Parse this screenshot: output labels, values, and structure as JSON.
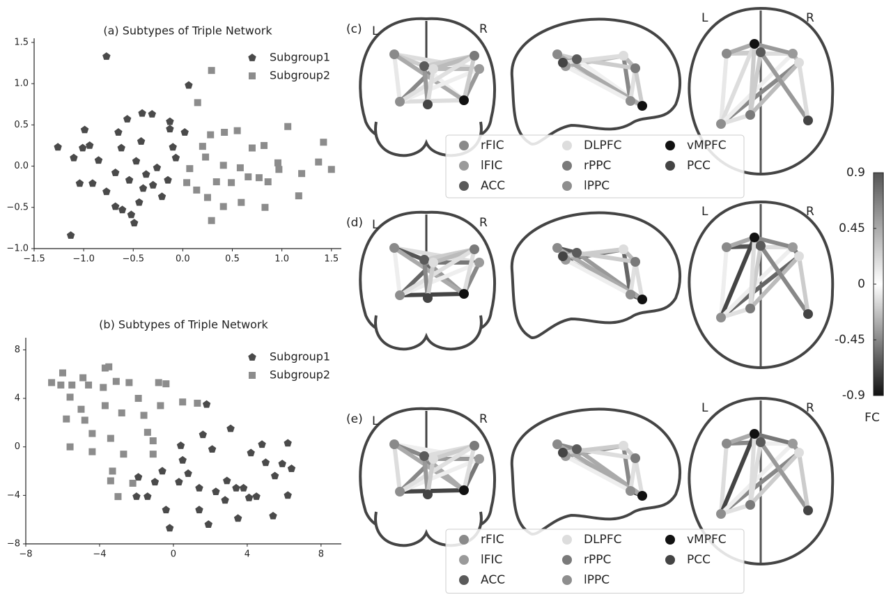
{
  "chart_data": [
    {
      "type": "scatter",
      "title": "(a) Subtypes of Triple Network",
      "legend": "upper right",
      "xlim": [
        -1.5,
        1.6
      ],
      "ylim": [
        -1.0,
        1.55
      ],
      "xticks": [
        {
          "value": -1.5,
          "label": "−1.5"
        },
        {
          "value": -1.0,
          "label": "−1.0"
        },
        {
          "value": -0.5,
          "label": "−0.5"
        },
        {
          "value": 0,
          "label": "0.0"
        },
        0.5,
        {
          "value": 1.0,
          "label": "1.0"
        },
        1.5
      ],
      "yticks": [
        {
          "value": -1.0,
          "label": "−1.0"
        },
        {
          "value": -0.5,
          "label": "−0.5"
        },
        {
          "value": 0,
          "label": "0.0"
        },
        0.5,
        {
          "value": 1.0,
          "label": "1.0"
        },
        1.5
      ],
      "series": [
        {
          "name": "Subgroup1",
          "color": "#4a4a4a",
          "marker": "pentagon",
          "x": [
            -0.77,
            -1.26,
            -0.99,
            -1.13,
            -1.01,
            -0.94,
            -1.1,
            -1.04,
            -0.91,
            -0.85,
            -0.77,
            -0.68,
            -0.61,
            -0.52,
            -0.49,
            -0.42,
            -0.31,
            -0.56,
            -0.41,
            -0.62,
            -0.47,
            -0.37,
            -0.26,
            -0.13,
            -0.13,
            -0.21,
            -0.07,
            0.06,
            0.02,
            -0.68,
            -0.54,
            -0.3,
            -0.15,
            -0.4,
            -0.1,
            -0.44,
            -0.65
          ],
          "values": [
            1.33,
            0.23,
            0.44,
            -0.84,
            0.22,
            0.25,
            0.1,
            -0.21,
            -0.21,
            0.07,
            -0.31,
            -0.49,
            -0.53,
            -0.59,
            -0.69,
            0.3,
            0.63,
            0.57,
            0.64,
            0.22,
            0.06,
            -0.1,
            -0.02,
            0.54,
            0.45,
            -0.37,
            0.1,
            0.98,
            0.41,
            -0.08,
            -0.17,
            -0.23,
            -0.17,
            -0.27,
            0.23,
            -0.44,
            0.41
          ]
        },
        {
          "name": "Subgroup2",
          "color": "#8c8c8c",
          "marker": "square",
          "x": [
            0.29,
            0.15,
            1.06,
            1.42,
            1.5,
            1.37,
            1.2,
            1.17,
            0.96,
            0.97,
            0.86,
            0.82,
            0.7,
            0.55,
            0.42,
            0.28,
            0.2,
            0.23,
            0.07,
            0.04,
            0.14,
            0.25,
            0.29,
            0.41,
            0.59,
            0.66,
            0.77,
            0.83,
            0.49,
            0.41,
            0.58,
            0.34
          ],
          "values": [
            1.16,
            0.77,
            0.48,
            0.29,
            -0.04,
            0.05,
            -0.09,
            -0.36,
            0.04,
            -0.04,
            -0.19,
            0.25,
            0.22,
            0.43,
            0.41,
            0.38,
            0.24,
            0.11,
            -0.03,
            -0.2,
            -0.29,
            -0.38,
            -0.66,
            -0.49,
            -0.44,
            -0.13,
            -0.14,
            -0.5,
            -0.2,
            0.01,
            -0.02,
            -0.19
          ]
        }
      ]
    },
    {
      "type": "scatter",
      "title": "(b) Subtypes of Triple Network",
      "legend": "upper right",
      "xlim": [
        -8,
        9.1
      ],
      "ylim": [
        -8,
        9
      ],
      "xticks": [
        {
          "value": -8,
          "label": "−8"
        },
        {
          "value": -4,
          "label": "−4"
        },
        0,
        4,
        8
      ],
      "yticks": [
        {
          "value": -8,
          "label": "−8"
        },
        {
          "value": -4,
          "label": "−4"
        },
        0,
        4,
        8
      ],
      "series": [
        {
          "name": "Subgroup1",
          "color": "#4a4a4a",
          "marker": "pentagon",
          "x": [
            1.8,
            3.1,
            4.2,
            4.8,
            6.2,
            6.4,
            6.2,
            5.4,
            3.5,
            1.9,
            -0.2,
            -0.4,
            -1.9,
            -1.4,
            -2.0,
            -0.6,
            0.4,
            0.3,
            1.4,
            1.4,
            0.5,
            2.1,
            2.9,
            3.4,
            4.1,
            4.5,
            5.0,
            5.5,
            5.9,
            2.8,
            2.3,
            0.8,
            -1.0,
            3.8,
            1.6
          ],
          "values": [
            3.5,
            1.5,
            -0.5,
            0.2,
            0.3,
            -1.8,
            -4.0,
            -5.7,
            -5.9,
            -6.4,
            -6.7,
            -5.2,
            -2.5,
            -4.1,
            -4.1,
            -2.0,
            0.1,
            -2.9,
            -3.4,
            -5.2,
            -1.1,
            -0.2,
            -2.8,
            -3.4,
            -4.2,
            -4.1,
            -1.3,
            -2.4,
            -1.4,
            -4.4,
            -3.7,
            -2.2,
            -2.9,
            -3.4,
            1.0
          ]
        },
        {
          "name": "Subgroup2",
          "color": "#8c8c8c",
          "marker": "square",
          "x": [
            -6.6,
            -6.0,
            -6.1,
            -5.6,
            -5.5,
            -4.9,
            -4.6,
            -3.7,
            -3.5,
            -3.8,
            -3.1,
            -2.4,
            -1.9,
            -0.8,
            -0.4,
            0.5,
            1.3,
            -5.8,
            -5.6,
            -4.8,
            -4.4,
            -4.4,
            -3.4,
            -2.7,
            -3.3,
            -3.4,
            -3.0,
            -2.2,
            -1.4,
            -1.1,
            -1.6,
            -3.7,
            -2.8,
            -5.0,
            -0.7,
            -1.1
          ],
          "values": [
            5.3,
            6.1,
            5.1,
            4.1,
            5.1,
            5.7,
            5.1,
            6.5,
            6.6,
            4.9,
            5.4,
            5.3,
            4.0,
            5.3,
            5.2,
            3.7,
            3.6,
            2.3,
            0.0,
            2.2,
            1.1,
            -0.4,
            0.7,
            -0.6,
            -2.0,
            -2.8,
            -4.1,
            -3.0,
            1.2,
            0.5,
            2.6,
            3.4,
            2.8,
            3.1,
            3.4,
            -0.6
          ]
        }
      ]
    },
    {
      "type": "colorbar",
      "label": "FC",
      "ylim": [
        -0.9,
        0.9
      ],
      "yticks": [
        0.9,
        0.45,
        0,
        -0.45,
        -0.9
      ],
      "colormap": [
        "#111111",
        "#ffffff",
        "#555555"
      ]
    }
  ],
  "brain_panels": {
    "labels": [
      "(c)",
      "(d)",
      "(e)"
    ],
    "left": "L",
    "right": "R",
    "legend": [
      {
        "name": "rFIC",
        "color": "#8a8a8a"
      },
      {
        "name": "lFIC",
        "color": "#9a9a9a"
      },
      {
        "name": "ACC",
        "color": "#5a5a5a"
      },
      {
        "name": "DLPFC",
        "color": "#dddddd"
      },
      {
        "name": "rPPC",
        "color": "#7a7a7a"
      },
      {
        "name": "lPPC",
        "color": "#8e8e8e"
      },
      {
        "name": "vMPFC",
        "color": "#111111"
      },
      {
        "name": "PCC",
        "color": "#444444"
      }
    ]
  }
}
